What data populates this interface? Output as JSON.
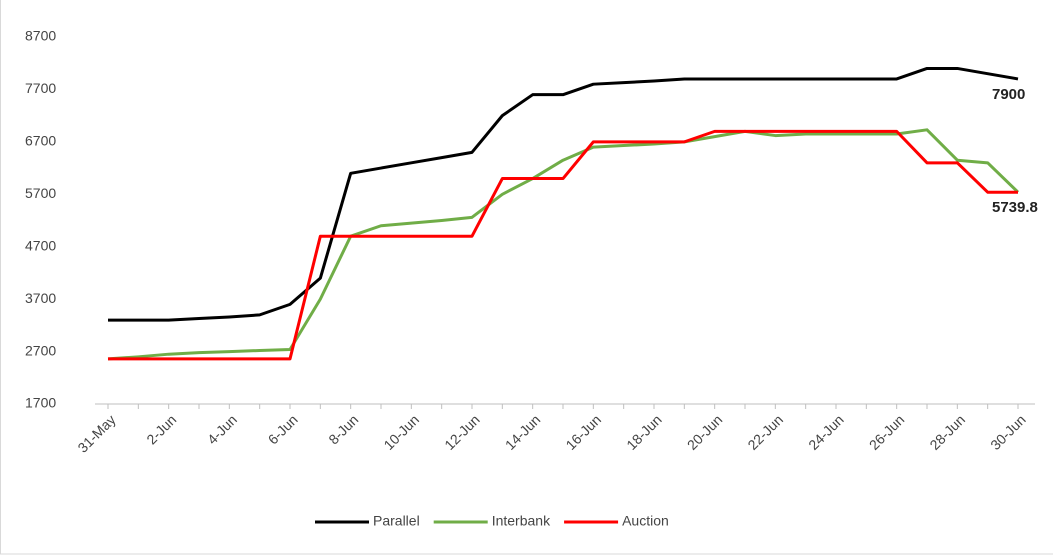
{
  "chart_data": {
    "type": "line",
    "categories": [
      "31-May",
      null,
      "2-Jun",
      null,
      "4-Jun",
      null,
      "6-Jun",
      null,
      "8-Jun",
      null,
      "10-Jun",
      null,
      "12-Jun",
      null,
      "14-Jun",
      null,
      "16-Jun",
      null,
      "18-Jun",
      null,
      "20-Jun",
      null,
      "22-Jun",
      null,
      "24-Jun",
      null,
      "26-Jun",
      null,
      "28-Jun",
      null,
      "30-Jun"
    ],
    "series": [
      {
        "name": "Parallel",
        "color": "#000000",
        "label_last": true,
        "values": [
          3300,
          3300,
          3300,
          3330,
          3360,
          3400,
          3600,
          4100,
          6100,
          6200,
          6300,
          6400,
          6500,
          7200,
          7600,
          7600,
          7800,
          7830,
          7860,
          7900,
          7900,
          7900,
          7900,
          7900,
          7900,
          7900,
          7900,
          8100,
          8100,
          8000,
          7900
        ]
      },
      {
        "name": "Interbank",
        "color": "#70ad47",
        "label_last": true,
        "values": [
          2560,
          2600,
          2650,
          2680,
          2700,
          2720,
          2740,
          3700,
          4900,
          5100,
          5150,
          5200,
          5260,
          5700,
          6000,
          6350,
          6600,
          6630,
          6660,
          6700,
          6800,
          6900,
          6820,
          6850,
          6850,
          6850,
          6850,
          6930,
          6350,
          6300,
          5739.8
        ]
      },
      {
        "name": "Auction",
        "color": "#ff0000",
        "label_last": false,
        "values": [
          2560,
          2560,
          2560,
          2560,
          2560,
          2560,
          2560,
          4900,
          4900,
          4900,
          4900,
          4900,
          4900,
          6000,
          6000,
          6000,
          6700,
          6700,
          6700,
          6700,
          6900,
          6900,
          6900,
          6900,
          6900,
          6900,
          6900,
          6300,
          6300,
          5740,
          5740
        ]
      }
    ],
    "ylim": [
      1700,
      8700
    ],
    "yticks": [
      1700,
      2700,
      3700,
      4700,
      5700,
      6700,
      7700,
      8700
    ],
    "grid": false,
    "legend": "bottom"
  }
}
